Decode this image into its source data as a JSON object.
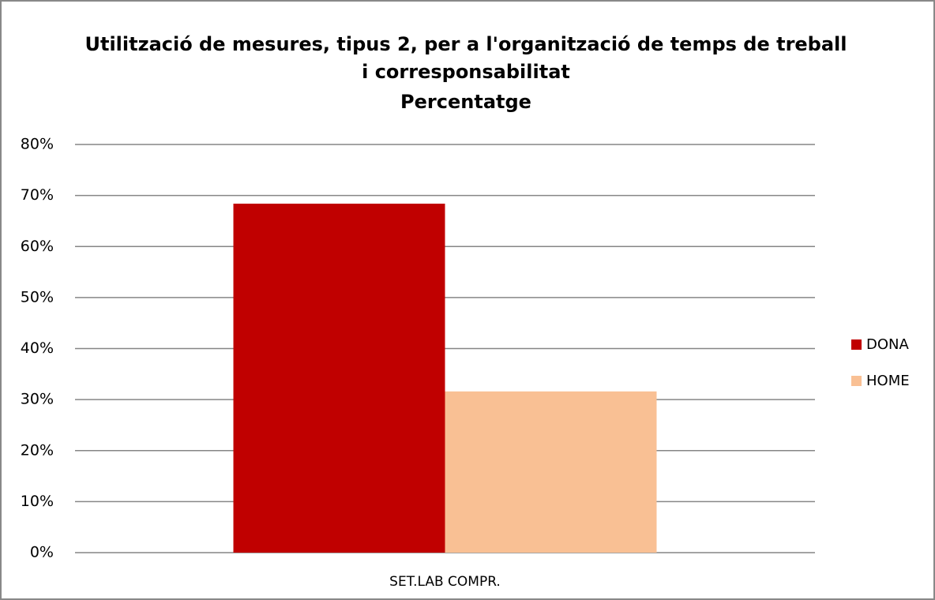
{
  "chart_data": {
    "type": "bar",
    "title": [
      "Utilització de mesures, tipus 2, per a l'organització de temps de treball",
      "i corresponsabilitat",
      "Percentatge"
    ],
    "categories": [
      "SET.LAB COMPR."
    ],
    "series": [
      {
        "name": "DONA",
        "color": "#c00000",
        "values": [
          68.4
        ]
      },
      {
        "name": "HOME",
        "color": "#f9c094",
        "values": [
          31.6
        ]
      }
    ],
    "ylim": [
      0,
      80
    ],
    "yticks": [
      {
        "value": 0,
        "label": "0%"
      },
      {
        "value": 10,
        "label": "10%"
      },
      {
        "value": 20,
        "label": "20%"
      },
      {
        "value": 30,
        "label": "30%"
      },
      {
        "value": 40,
        "label": "40%"
      },
      {
        "value": 50,
        "label": "50%"
      },
      {
        "value": 60,
        "label": "60%"
      },
      {
        "value": 70,
        "label": "70%"
      },
      {
        "value": 80,
        "label": "80%"
      }
    ],
    "grid": true,
    "legend": "right"
  }
}
